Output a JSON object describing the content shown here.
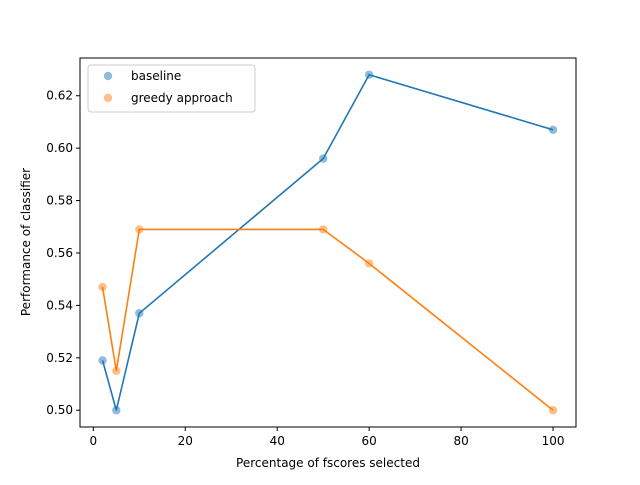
{
  "chart_data": {
    "type": "scatter",
    "xlabel": "Percentage of fscores selected",
    "ylabel": "Performance of classifier",
    "xlim": [
      -2.9,
      105
    ],
    "ylim": [
      0.4936,
      0.6344
    ],
    "x_ticks": [
      0,
      20,
      40,
      60,
      80,
      100
    ],
    "x_tick_labels": [
      "0",
      "20",
      "40",
      "60",
      "80",
      "100"
    ],
    "y_ticks": [
      0.5,
      0.52,
      0.54,
      0.56,
      0.58,
      0.6,
      0.62
    ],
    "y_tick_labels": [
      "0.50",
      "0.52",
      "0.54",
      "0.56",
      "0.58",
      "0.60",
      "0.62"
    ],
    "grid": false,
    "legend_position": "top-left",
    "series": [
      {
        "name": "baseline",
        "color": "#1f77b4",
        "x": [
          2,
          5,
          10,
          50,
          60,
          100
        ],
        "y": [
          0.519,
          0.5,
          0.537,
          0.596,
          0.628,
          0.607
        ]
      },
      {
        "name": "greedy approach",
        "color": "#ff7f0e",
        "x": [
          2,
          5,
          10,
          50,
          60,
          100
        ],
        "y": [
          0.547,
          0.515,
          0.569,
          0.569,
          0.556,
          0.5
        ]
      }
    ]
  }
}
